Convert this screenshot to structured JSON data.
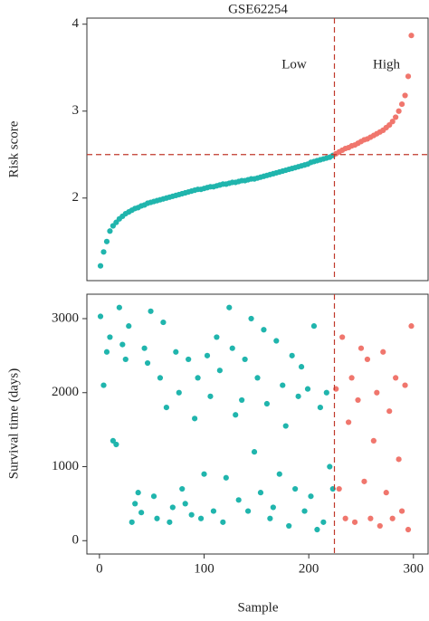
{
  "chart_data": [
    {
      "type": "scatter",
      "title": "GSE62254",
      "ylabel": "Risk score",
      "xlim": [
        -12,
        314
      ],
      "ylim": [
        1.05,
        4.07
      ],
      "yticks": [
        2,
        3,
        4
      ],
      "vline": 224.5,
      "hline": 2.5,
      "series": [
        {
          "name": "Low",
          "color": "#20b5ad",
          "x": [
            1,
            4,
            7,
            10,
            13,
            16,
            19,
            22,
            25,
            28,
            31,
            34,
            37,
            40,
            43,
            46,
            49,
            52,
            55,
            58,
            61,
            64,
            67,
            70,
            73,
            76,
            79,
            82,
            85,
            88,
            91,
            94,
            97,
            100,
            103,
            106,
            109,
            112,
            115,
            118,
            121,
            124,
            127,
            130,
            133,
            136,
            139,
            142,
            145,
            148,
            151,
            154,
            157,
            160,
            163,
            166,
            169,
            172,
            175,
            178,
            181,
            184,
            187,
            190,
            193,
            196,
            199,
            202,
            205,
            208,
            211,
            214,
            217,
            220,
            223
          ],
          "values": [
            1.22,
            1.38,
            1.5,
            1.62,
            1.68,
            1.72,
            1.76,
            1.79,
            1.82,
            1.84,
            1.86,
            1.88,
            1.89,
            1.91,
            1.92,
            1.94,
            1.95,
            1.96,
            1.97,
            1.98,
            1.99,
            2.0,
            2.01,
            2.02,
            2.03,
            2.04,
            2.05,
            2.06,
            2.07,
            2.08,
            2.09,
            2.1,
            2.1,
            2.11,
            2.12,
            2.13,
            2.13,
            2.14,
            2.15,
            2.16,
            2.16,
            2.17,
            2.18,
            2.18,
            2.19,
            2.2,
            2.2,
            2.21,
            2.22,
            2.22,
            2.23,
            2.24,
            2.25,
            2.26,
            2.27,
            2.28,
            2.29,
            2.3,
            2.31,
            2.32,
            2.33,
            2.34,
            2.35,
            2.36,
            2.37,
            2.38,
            2.39,
            2.41,
            2.42,
            2.43,
            2.44,
            2.45,
            2.46,
            2.47,
            2.49
          ]
        },
        {
          "name": "High",
          "color": "#f0766d",
          "x": [
            226,
            229,
            232,
            235,
            238,
            241,
            244,
            247,
            250,
            253,
            256,
            259,
            262,
            265,
            268,
            271,
            274,
            277,
            280,
            283,
            286,
            289,
            292,
            295,
            298
          ],
          "values": [
            2.51,
            2.53,
            2.55,
            2.57,
            2.58,
            2.6,
            2.61,
            2.63,
            2.65,
            2.67,
            2.68,
            2.7,
            2.72,
            2.74,
            2.76,
            2.78,
            2.81,
            2.84,
            2.88,
            2.93,
            3.0,
            3.08,
            3.18,
            3.4,
            3.87
          ]
        }
      ]
    },
    {
      "type": "scatter",
      "ylabel": "Survival time (days)",
      "xlabel": "Sample",
      "xlim": [
        -12,
        314
      ],
      "xticks": [
        0,
        100,
        200,
        300
      ],
      "ylim": [
        -180,
        3330
      ],
      "yticks": [
        0,
        1000,
        2000,
        3000
      ],
      "vline": 224.5,
      "series": [
        {
          "name": "Low",
          "color": "#20b5ad",
          "x": [
            1,
            4,
            7,
            10,
            13,
            16,
            19,
            22,
            25,
            28,
            31,
            34,
            37,
            40,
            43,
            46,
            49,
            52,
            55,
            58,
            61,
            64,
            67,
            70,
            73,
            76,
            79,
            82,
            85,
            88,
            91,
            94,
            97,
            100,
            103,
            106,
            109,
            112,
            115,
            118,
            121,
            124,
            127,
            130,
            133,
            136,
            139,
            142,
            145,
            148,
            151,
            154,
            157,
            160,
            163,
            166,
            169,
            172,
            175,
            178,
            181,
            184,
            187,
            190,
            193,
            196,
            199,
            202,
            205,
            208,
            211,
            214,
            217,
            220,
            223
          ],
          "values": [
            3030,
            2100,
            2550,
            2750,
            1350,
            1300,
            3150,
            2650,
            2450,
            2900,
            250,
            500,
            650,
            380,
            2600,
            2400,
            3100,
            600,
            300,
            2200,
            2950,
            1800,
            250,
            450,
            2550,
            2000,
            700,
            500,
            2450,
            350,
            1650,
            2200,
            300,
            900,
            2500,
            1950,
            400,
            2750,
            2300,
            250,
            850,
            3150,
            2600,
            1700,
            550,
            1900,
            2450,
            400,
            3000,
            1200,
            2200,
            650,
            2850,
            1850,
            300,
            450,
            2700,
            900,
            2100,
            1550,
            200,
            2500,
            700,
            1950,
            2350,
            400,
            2050,
            600,
            2900,
            150,
            1800,
            250,
            2000,
            1000,
            700
          ]
        },
        {
          "name": "High",
          "color": "#f0766d",
          "x": [
            226,
            229,
            232,
            235,
            238,
            241,
            244,
            247,
            250,
            253,
            256,
            259,
            262,
            265,
            268,
            271,
            274,
            277,
            280,
            283,
            286,
            289,
            292,
            295,
            298
          ],
          "values": [
            2050,
            700,
            2750,
            300,
            1600,
            2200,
            250,
            1900,
            2600,
            800,
            2450,
            300,
            1350,
            2000,
            200,
            2550,
            650,
            1750,
            300,
            2200,
            1100,
            400,
            2100,
            150,
            2900
          ]
        }
      ]
    }
  ]
}
